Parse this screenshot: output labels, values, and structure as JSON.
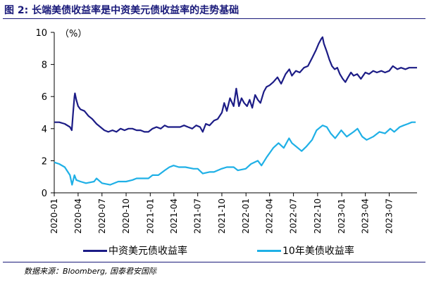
{
  "figure": {
    "title": "图 2:  长端美债收益率是中资美元债收益率的走势基础",
    "source": "数据来源：Bloomberg, 国泰君安国际"
  },
  "chart_data": {
    "type": "line",
    "unit_label": "（%）",
    "xlabel": "",
    "ylabel": "",
    "ylim": [
      0,
      10
    ],
    "yticks": [
      "0",
      "2",
      "4",
      "6",
      "8",
      "10"
    ],
    "xlim": [
      "2020-01-01",
      "2023-10-15"
    ],
    "xticks": [
      "2020-01",
      "2020-04",
      "2020-07",
      "2020-10",
      "2021-01",
      "2021-04",
      "2021-07",
      "2021-10",
      "2022-01",
      "2022-04",
      "2022-07",
      "2022-10",
      "2023-01",
      "2023-04",
      "2023-07"
    ],
    "grid": false,
    "legend_position": "bottom",
    "series": [
      {
        "name": "中资美元债收益率",
        "color": "#1c1c86",
        "points": [
          [
            "2020-01-01",
            4.4
          ],
          [
            "2020-01-20",
            4.4
          ],
          [
            "2020-02-10",
            4.3
          ],
          [
            "2020-03-01",
            4.1
          ],
          [
            "2020-03-08",
            3.9
          ],
          [
            "2020-03-13",
            5.0
          ],
          [
            "2020-03-18",
            6.0
          ],
          [
            "2020-03-20",
            6.2
          ],
          [
            "2020-03-25",
            5.8
          ],
          [
            "2020-04-01",
            5.4
          ],
          [
            "2020-04-10",
            5.2
          ],
          [
            "2020-04-25",
            5.1
          ],
          [
            "2020-05-10",
            4.8
          ],
          [
            "2020-05-25",
            4.6
          ],
          [
            "2020-06-10",
            4.3
          ],
          [
            "2020-06-25",
            4.1
          ],
          [
            "2020-07-10",
            3.9
          ],
          [
            "2020-07-25",
            3.8
          ],
          [
            "2020-08-10",
            3.9
          ],
          [
            "2020-08-25",
            3.8
          ],
          [
            "2020-09-10",
            4.0
          ],
          [
            "2020-09-25",
            3.9
          ],
          [
            "2020-10-10",
            4.0
          ],
          [
            "2020-10-25",
            4.0
          ],
          [
            "2020-11-10",
            3.9
          ],
          [
            "2020-11-25",
            3.9
          ],
          [
            "2020-12-10",
            3.8
          ],
          [
            "2020-12-25",
            3.8
          ],
          [
            "2021-01-10",
            4.0
          ],
          [
            "2021-01-25",
            4.1
          ],
          [
            "2021-02-10",
            4.0
          ],
          [
            "2021-02-25",
            4.2
          ],
          [
            "2021-03-10",
            4.1
          ],
          [
            "2021-03-25",
            4.1
          ],
          [
            "2021-04-10",
            4.1
          ],
          [
            "2021-04-25",
            4.1
          ],
          [
            "2021-05-10",
            4.2
          ],
          [
            "2021-05-25",
            4.1
          ],
          [
            "2021-06-10",
            4.0
          ],
          [
            "2021-06-25",
            4.2
          ],
          [
            "2021-07-10",
            4.1
          ],
          [
            "2021-07-20",
            3.8
          ],
          [
            "2021-08-01",
            4.3
          ],
          [
            "2021-08-15",
            4.2
          ],
          [
            "2021-09-01",
            4.5
          ],
          [
            "2021-09-15",
            4.6
          ],
          [
            "2021-10-01",
            5.0
          ],
          [
            "2021-10-10",
            5.6
          ],
          [
            "2021-10-20",
            5.1
          ],
          [
            "2021-11-01",
            5.9
          ],
          [
            "2021-11-15",
            5.4
          ],
          [
            "2021-11-25",
            6.5
          ],
          [
            "2021-12-05",
            5.4
          ],
          [
            "2021-12-15",
            5.9
          ],
          [
            "2021-12-25",
            5.6
          ],
          [
            "2022-01-05",
            5.4
          ],
          [
            "2022-01-15",
            5.8
          ],
          [
            "2022-01-25",
            5.3
          ],
          [
            "2022-02-05",
            6.1
          ],
          [
            "2022-02-15",
            5.8
          ],
          [
            "2022-02-25",
            5.6
          ],
          [
            "2022-03-10",
            6.3
          ],
          [
            "2022-03-20",
            6.6
          ],
          [
            "2022-04-01",
            6.7
          ],
          [
            "2022-04-15",
            6.9
          ],
          [
            "2022-05-01",
            7.2
          ],
          [
            "2022-05-15",
            6.8
          ],
          [
            "2022-06-01",
            7.4
          ],
          [
            "2022-06-15",
            7.7
          ],
          [
            "2022-06-25",
            7.3
          ],
          [
            "2022-07-10",
            7.6
          ],
          [
            "2022-07-25",
            7.5
          ],
          [
            "2022-08-10",
            7.8
          ],
          [
            "2022-08-25",
            7.9
          ],
          [
            "2022-09-10",
            8.4
          ],
          [
            "2022-09-25",
            8.9
          ],
          [
            "2022-10-05",
            9.3
          ],
          [
            "2022-10-15",
            9.6
          ],
          [
            "2022-10-20",
            9.7
          ],
          [
            "2022-10-25",
            9.3
          ],
          [
            "2022-11-05",
            8.8
          ],
          [
            "2022-11-15",
            8.3
          ],
          [
            "2022-11-25",
            7.9
          ],
          [
            "2022-12-05",
            7.7
          ],
          [
            "2022-12-15",
            7.8
          ],
          [
            "2022-12-25",
            7.4
          ],
          [
            "2023-01-05",
            7.1
          ],
          [
            "2023-01-15",
            6.9
          ],
          [
            "2023-01-25",
            7.2
          ],
          [
            "2023-02-05",
            7.5
          ],
          [
            "2023-02-15",
            7.3
          ],
          [
            "2023-03-01",
            7.4
          ],
          [
            "2023-03-15",
            7.1
          ],
          [
            "2023-04-01",
            7.5
          ],
          [
            "2023-04-15",
            7.4
          ],
          [
            "2023-05-01",
            7.6
          ],
          [
            "2023-05-15",
            7.5
          ],
          [
            "2023-06-01",
            7.6
          ],
          [
            "2023-06-15",
            7.5
          ],
          [
            "2023-07-01",
            7.6
          ],
          [
            "2023-07-15",
            7.9
          ],
          [
            "2023-08-01",
            7.7
          ],
          [
            "2023-08-15",
            7.8
          ],
          [
            "2023-09-01",
            7.7
          ],
          [
            "2023-09-15",
            7.8
          ],
          [
            "2023-10-01",
            7.8
          ],
          [
            "2023-10-15",
            7.8
          ]
        ]
      },
      {
        "name": "10年美债收益率",
        "color": "#1fb0e6",
        "points": [
          [
            "2020-01-01",
            1.9
          ],
          [
            "2020-01-20",
            1.8
          ],
          [
            "2020-02-10",
            1.6
          ],
          [
            "2020-03-01",
            1.1
          ],
          [
            "2020-03-09",
            0.5
          ],
          [
            "2020-03-18",
            1.1
          ],
          [
            "2020-03-25",
            0.8
          ],
          [
            "2020-04-10",
            0.7
          ],
          [
            "2020-05-01",
            0.6
          ],
          [
            "2020-06-01",
            0.7
          ],
          [
            "2020-06-10",
            0.9
          ],
          [
            "2020-07-01",
            0.6
          ],
          [
            "2020-08-01",
            0.5
          ],
          [
            "2020-09-01",
            0.7
          ],
          [
            "2020-10-01",
            0.7
          ],
          [
            "2020-10-25",
            0.8
          ],
          [
            "2020-11-10",
            0.9
          ],
          [
            "2020-12-01",
            0.9
          ],
          [
            "2020-12-25",
            0.9
          ],
          [
            "2021-01-10",
            1.1
          ],
          [
            "2021-02-01",
            1.1
          ],
          [
            "2021-02-25",
            1.4
          ],
          [
            "2021-03-15",
            1.6
          ],
          [
            "2021-03-31",
            1.7
          ],
          [
            "2021-04-20",
            1.6
          ],
          [
            "2021-05-15",
            1.6
          ],
          [
            "2021-06-15",
            1.5
          ],
          [
            "2021-07-01",
            1.5
          ],
          [
            "2021-07-20",
            1.2
          ],
          [
            "2021-08-15",
            1.3
          ],
          [
            "2021-09-01",
            1.3
          ],
          [
            "2021-09-30",
            1.5
          ],
          [
            "2021-10-20",
            1.6
          ],
          [
            "2021-11-15",
            1.6
          ],
          [
            "2021-12-01",
            1.4
          ],
          [
            "2021-12-31",
            1.5
          ],
          [
            "2022-01-20",
            1.8
          ],
          [
            "2022-02-15",
            2.0
          ],
          [
            "2022-03-01",
            1.7
          ],
          [
            "2022-03-20",
            2.2
          ],
          [
            "2022-04-15",
            2.8
          ],
          [
            "2022-05-05",
            3.1
          ],
          [
            "2022-05-25",
            2.8
          ],
          [
            "2022-06-14",
            3.4
          ],
          [
            "2022-06-25",
            3.1
          ],
          [
            "2022-07-10",
            2.9
          ],
          [
            "2022-08-01",
            2.6
          ],
          [
            "2022-08-20",
            2.9
          ],
          [
            "2022-09-10",
            3.3
          ],
          [
            "2022-09-27",
            3.9
          ],
          [
            "2022-10-20",
            4.2
          ],
          [
            "2022-11-05",
            4.1
          ],
          [
            "2022-11-20",
            3.7
          ],
          [
            "2022-12-07",
            3.4
          ],
          [
            "2022-12-30",
            3.9
          ],
          [
            "2023-01-20",
            3.5
          ],
          [
            "2023-02-15",
            3.8
          ],
          [
            "2023-03-02",
            4.0
          ],
          [
            "2023-03-20",
            3.5
          ],
          [
            "2023-04-06",
            3.3
          ],
          [
            "2023-05-01",
            3.5
          ],
          [
            "2023-05-25",
            3.8
          ],
          [
            "2023-06-15",
            3.7
          ],
          [
            "2023-07-05",
            4.0
          ],
          [
            "2023-07-20",
            3.8
          ],
          [
            "2023-08-10",
            4.1
          ],
          [
            "2023-08-25",
            4.2
          ],
          [
            "2023-09-10",
            4.3
          ],
          [
            "2023-09-25",
            4.4
          ],
          [
            "2023-10-10",
            4.4
          ]
        ]
      }
    ]
  }
}
